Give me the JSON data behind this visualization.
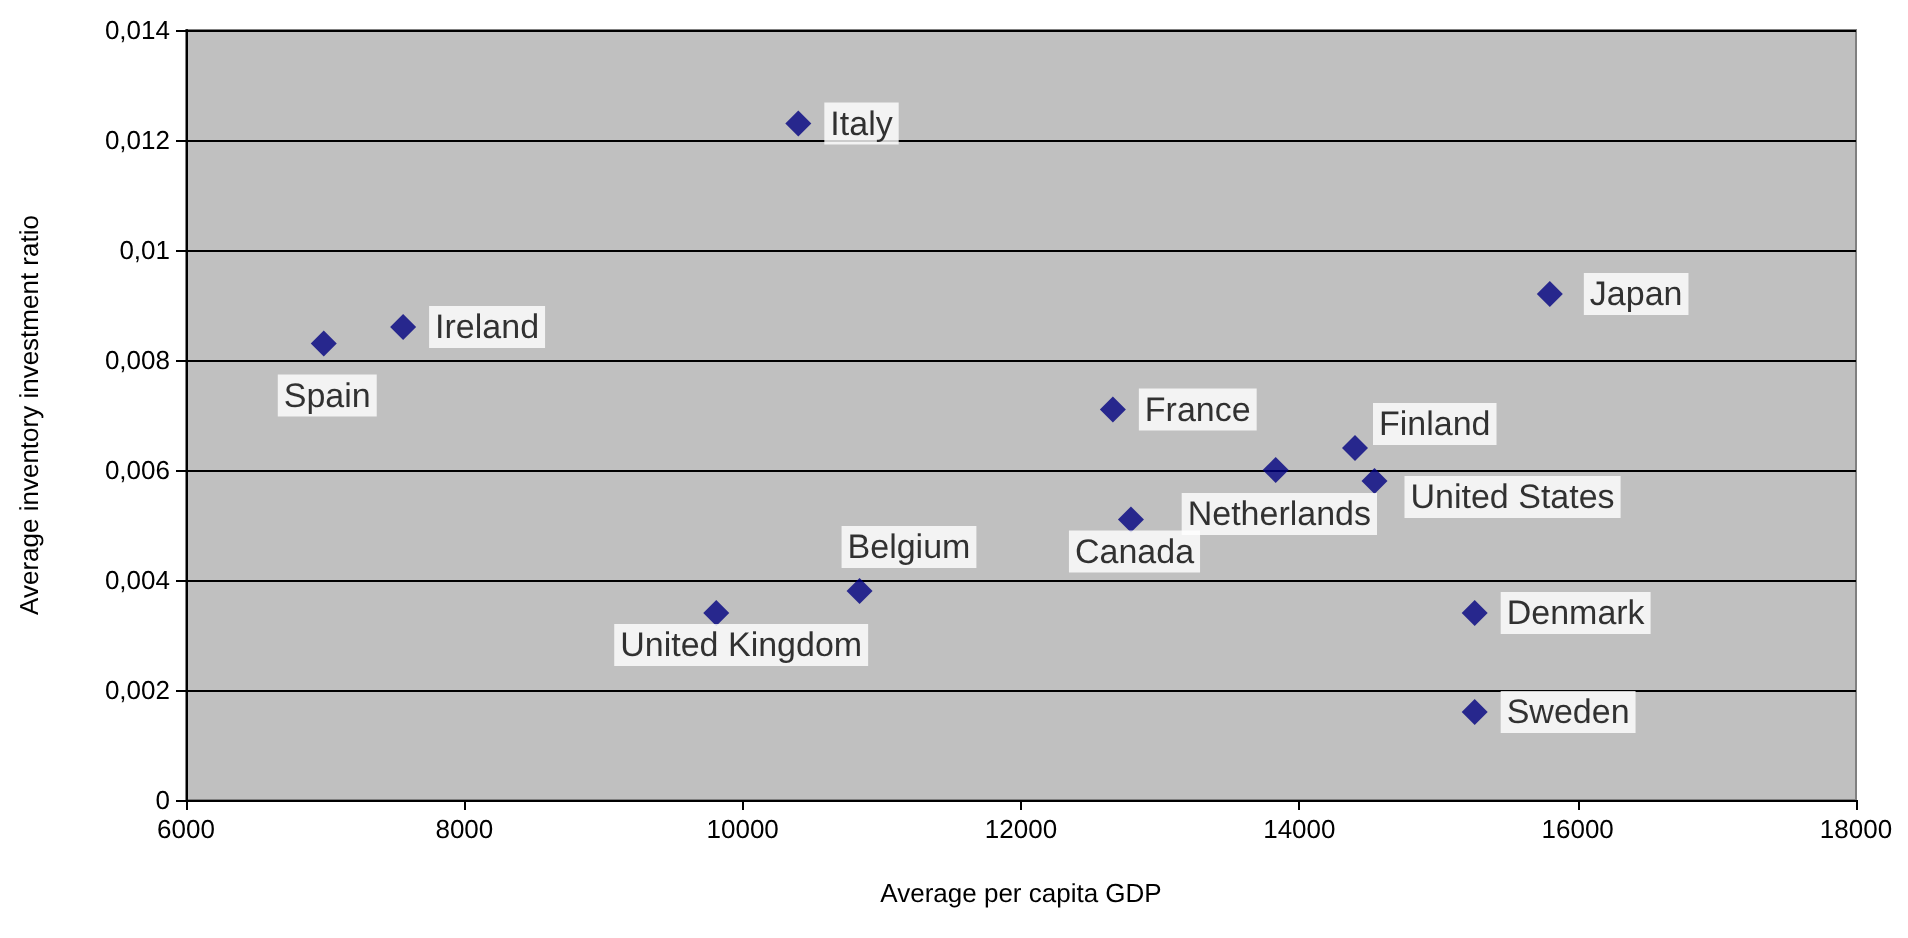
{
  "chart_data": {
    "type": "scatter",
    "xlabel": "Average per capita GDP",
    "ylabel": "Average inventory investment ratio",
    "x": [
      10400,
      6990,
      7560,
      15800,
      12660,
      14400,
      13830,
      14540,
      12790,
      10840,
      9810,
      15260,
      15260
    ],
    "values": [
      0.0123,
      0.0083,
      0.0086,
      0.0092,
      0.0071,
      0.0064,
      0.006,
      0.0058,
      0.0051,
      0.0038,
      0.0034,
      0.0034,
      0.0016
    ],
    "color": "#000080",
    "marker": "diamond",
    "grid": "y",
    "xlim": [
      6000,
      18000
    ],
    "xticks": [
      6000,
      8000,
      10000,
      12000,
      14000,
      16000,
      18000
    ],
    "ylim": [
      0,
      0.014
    ],
    "yticks": [
      0,
      {
        "value": 0.002,
        "label": "0,002"
      },
      {
        "value": 0.004,
        "label": "0,004"
      },
      {
        "value": 0.006,
        "label": "0,006"
      },
      {
        "value": 0.008,
        "label": "0,008"
      },
      {
        "value": 0.01,
        "label": "0,01"
      },
      {
        "value": 0.012,
        "label": "0,012"
      },
      {
        "value": 0.014,
        "label": "0,014"
      }
    ],
    "annotations": [
      {
        "text": "Italy",
        "x": 10400,
        "y": 0.0123
      },
      {
        "text": "Spain",
        "x": 6990,
        "y": 0.0083
      },
      {
        "text": "Ireland",
        "x": 7560,
        "y": 0.0086
      },
      {
        "text": "Japan",
        "x": 15800,
        "y": 0.0092
      },
      {
        "text": "France",
        "x": 12660,
        "y": 0.0071
      },
      {
        "text": "Finland",
        "x": 14400,
        "y": 0.0064
      },
      {
        "text": "Netherlands",
        "x": 13830,
        "y": 0.006
      },
      {
        "text": "United States",
        "x": 14540,
        "y": 0.0058
      },
      {
        "text": "Canada",
        "x": 12790,
        "y": 0.0051
      },
      {
        "text": "Belgium",
        "x": 10840,
        "y": 0.0038
      },
      {
        "text": "United Kingdom",
        "x": 9810,
        "y": 0.0034
      },
      {
        "text": "Denmark",
        "x": 15260,
        "y": 0.0034
      },
      {
        "text": "Sweden",
        "x": 15260,
        "y": 0.0016
      }
    ]
  }
}
